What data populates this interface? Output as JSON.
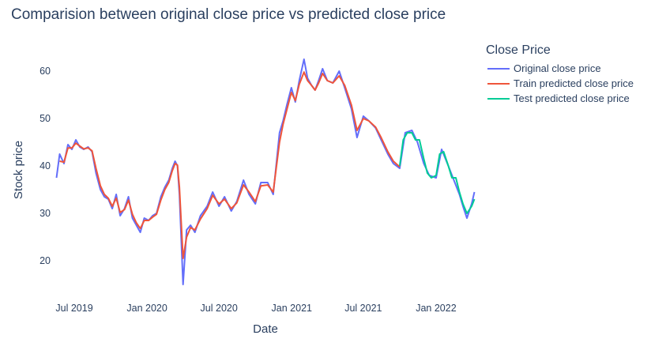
{
  "chart_data": {
    "type": "line",
    "title": "Comparision between original close price vs predicted close price",
    "xlabel": "Date",
    "ylabel": "Stock price",
    "x_ticks": [
      "Jul 2019",
      "Jan 2020",
      "Jul 2020",
      "Jan 2021",
      "Jul 2021",
      "Jan 2022"
    ],
    "x_tick_dates": [
      "2019-07-01",
      "2020-01-01",
      "2020-07-01",
      "2021-01-01",
      "2021-07-01",
      "2022-01-01"
    ],
    "y_ticks": [
      20,
      30,
      40,
      50,
      60
    ],
    "xlim": [
      "2019-05-10",
      "2022-04-15"
    ],
    "ylim": [
      13,
      65
    ],
    "grid": false,
    "legend": {
      "title": "Close Price",
      "position": "right"
    },
    "series": [
      {
        "name": "Original close price",
        "color": "#636efa",
        "x": [
          "2019-05-17",
          "2019-05-25",
          "2019-06-05",
          "2019-06-15",
          "2019-06-25",
          "2019-07-05",
          "2019-07-15",
          "2019-07-25",
          "2019-08-05",
          "2019-08-15",
          "2019-08-25",
          "2019-09-05",
          "2019-09-15",
          "2019-09-25",
          "2019-10-05",
          "2019-10-15",
          "2019-10-25",
          "2019-11-05",
          "2019-11-15",
          "2019-11-25",
          "2019-12-05",
          "2019-12-15",
          "2019-12-25",
          "2020-01-05",
          "2020-01-15",
          "2020-01-25",
          "2020-02-05",
          "2020-02-15",
          "2020-02-25",
          "2020-03-05",
          "2020-03-12",
          "2020-03-18",
          "2020-03-23",
          "2020-04-01",
          "2020-04-10",
          "2020-04-20",
          "2020-05-01",
          "2020-05-15",
          "2020-06-01",
          "2020-06-15",
          "2020-07-01",
          "2020-07-15",
          "2020-08-01",
          "2020-08-15",
          "2020-09-01",
          "2020-09-15",
          "2020-10-01",
          "2020-10-15",
          "2020-11-01",
          "2020-11-15",
          "2020-12-01",
          "2020-12-10",
          "2020-12-20",
          "2020-12-31",
          "2021-01-10",
          "2021-01-20",
          "2021-02-01",
          "2021-02-10",
          "2021-02-20",
          "2021-03-01",
          "2021-03-10",
          "2021-03-20",
          "2021-04-01",
          "2021-04-15",
          "2021-05-01",
          "2021-05-15",
          "2021-06-01",
          "2021-06-15",
          "2021-07-01",
          "2021-07-15",
          "2021-08-01",
          "2021-08-15",
          "2021-09-01",
          "2021-09-15",
          "2021-10-01",
          "2021-10-15",
          "2021-11-01",
          "2021-11-15",
          "2021-12-01",
          "2021-12-15",
          "2022-01-01",
          "2022-01-15",
          "2022-02-01",
          "2022-02-15",
          "2022-03-01",
          "2022-03-10",
          "2022-03-20",
          "2022-04-01",
          "2022-04-08"
        ],
        "y": [
          37.5,
          42.5,
          40.5,
          44.5,
          43.5,
          45.5,
          44.0,
          43.5,
          44.0,
          43.0,
          38.5,
          35.0,
          33.5,
          33.0,
          31.0,
          34.0,
          29.5,
          31.0,
          33.5,
          29.0,
          27.5,
          26.0,
          29.0,
          28.5,
          29.5,
          30.0,
          33.5,
          35.5,
          37.0,
          39.5,
          41.0,
          40.0,
          34.0,
          15.0,
          26.5,
          27.5,
          26.0,
          29.5,
          31.5,
          34.5,
          31.5,
          33.5,
          30.5,
          32.5,
          37.0,
          34.0,
          32.0,
          36.5,
          36.5,
          34.0,
          47.0,
          49.5,
          53.0,
          56.5,
          53.5,
          58.0,
          62.5,
          58.5,
          57.0,
          56.0,
          58.0,
          60.5,
          58.0,
          57.5,
          60.0,
          56.5,
          52.0,
          46.0,
          50.5,
          49.5,
          48.0,
          45.5,
          42.5,
          40.5,
          39.5,
          47.0,
          47.5,
          45.0,
          40.5,
          38.0,
          37.5,
          43.5,
          40.0,
          37.0,
          34.0,
          31.5,
          29.0,
          32.0,
          34.5
        ]
      },
      {
        "name": "Train predicted close price",
        "color": "#ef553b",
        "x": [
          "2019-05-25",
          "2019-06-05",
          "2019-06-15",
          "2019-06-25",
          "2019-07-05",
          "2019-07-15",
          "2019-07-25",
          "2019-08-05",
          "2019-08-15",
          "2019-08-25",
          "2019-09-05",
          "2019-09-15",
          "2019-09-25",
          "2019-10-05",
          "2019-10-15",
          "2019-10-25",
          "2019-11-05",
          "2019-11-15",
          "2019-11-25",
          "2019-12-05",
          "2019-12-15",
          "2019-12-25",
          "2020-01-05",
          "2020-01-15",
          "2020-01-25",
          "2020-02-05",
          "2020-02-15",
          "2020-02-25",
          "2020-03-05",
          "2020-03-12",
          "2020-03-18",
          "2020-03-23",
          "2020-04-01",
          "2020-04-10",
          "2020-04-20",
          "2020-05-01",
          "2020-05-15",
          "2020-06-01",
          "2020-06-15",
          "2020-07-01",
          "2020-07-15",
          "2020-08-01",
          "2020-08-15",
          "2020-09-01",
          "2020-09-15",
          "2020-10-01",
          "2020-10-15",
          "2020-11-01",
          "2020-11-15",
          "2020-12-01",
          "2020-12-10",
          "2020-12-20",
          "2020-12-31",
          "2021-01-10",
          "2021-01-20",
          "2021-02-01",
          "2021-02-10",
          "2021-02-20",
          "2021-03-01",
          "2021-03-10",
          "2021-03-20",
          "2021-04-01",
          "2021-04-15",
          "2021-05-01",
          "2021-05-15",
          "2021-06-01",
          "2021-06-15",
          "2021-07-01",
          "2021-07-15",
          "2021-08-01",
          "2021-08-15",
          "2021-09-01",
          "2021-09-15",
          "2021-10-01"
        ],
        "y": [
          41.0,
          40.8,
          43.8,
          43.8,
          44.8,
          44.2,
          43.6,
          43.8,
          43.2,
          39.5,
          35.8,
          34.0,
          33.2,
          31.5,
          33.2,
          30.2,
          30.8,
          32.8,
          29.8,
          28.0,
          26.8,
          28.5,
          28.5,
          29.2,
          29.8,
          32.8,
          35.0,
          36.5,
          39.0,
          40.5,
          40.2,
          35.5,
          20.5,
          25.0,
          27.0,
          26.5,
          28.8,
          31.0,
          33.8,
          32.0,
          33.0,
          31.0,
          32.2,
          36.0,
          34.5,
          32.5,
          35.8,
          36.0,
          34.5,
          45.0,
          48.8,
          52.0,
          55.5,
          53.8,
          57.2,
          59.8,
          58.0,
          57.0,
          56.0,
          57.5,
          59.5,
          58.0,
          57.5,
          59.0,
          57.0,
          52.8,
          47.5,
          50.0,
          49.5,
          48.2,
          46.0,
          43.0,
          41.0,
          39.8
        ]
      },
      {
        "name": "Test predicted close price",
        "color": "#00cc96",
        "x": [
          "2021-10-01",
          "2021-10-10",
          "2021-10-20",
          "2021-11-01",
          "2021-11-10",
          "2021-11-20",
          "2021-12-01",
          "2021-12-10",
          "2021-12-20",
          "2022-01-01",
          "2022-01-10",
          "2022-01-20",
          "2022-02-01",
          "2022-02-10",
          "2022-02-20",
          "2022-03-01",
          "2022-03-10",
          "2022-03-20",
          "2022-04-01",
          "2022-04-08"
        ],
        "y": [
          40.0,
          45.5,
          47.0,
          47.0,
          45.5,
          45.5,
          41.5,
          38.5,
          37.5,
          38.0,
          42.5,
          43.0,
          40.0,
          37.5,
          37.5,
          34.5,
          32.0,
          30.0,
          31.5,
          33.0
        ]
      }
    ]
  }
}
